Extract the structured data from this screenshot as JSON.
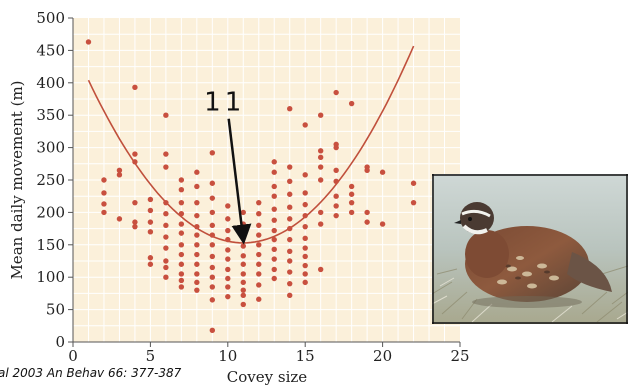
{
  "citation": "al 2003  An Behav 66: 377-387",
  "annotation_label": "11",
  "photo": {
    "subject": "quail-bird-photo"
  },
  "chart_data": {
    "type": "scatter",
    "title": "",
    "xlabel": "Covey size",
    "ylabel": "Mean daily movement (m)",
    "xlim": [
      0,
      25
    ],
    "ylim": [
      0,
      500
    ],
    "xticks": [
      0,
      5,
      10,
      15,
      20,
      25
    ],
    "yticks": [
      0,
      50,
      100,
      150,
      200,
      250,
      300,
      350,
      400,
      450,
      500
    ],
    "grid": true,
    "colors": {
      "points": "#c8503f",
      "curve": "#c0503c",
      "plot_bg": "#fbf0da",
      "grid": "#ffffff"
    },
    "fit_curve": {
      "type": "quadratic",
      "a": 2.51,
      "vertex_x": 11,
      "vertex_y": 153
    },
    "annotation_arrow": {
      "from": [
        9.8,
        360
      ],
      "to": [
        11,
        158
      ]
    },
    "points": [
      [
        1,
        463
      ],
      [
        2,
        250
      ],
      [
        2,
        230
      ],
      [
        2,
        213
      ],
      [
        2,
        200
      ],
      [
        3,
        265
      ],
      [
        3,
        258
      ],
      [
        3,
        190
      ],
      [
        4,
        393
      ],
      [
        4,
        290
      ],
      [
        4,
        278
      ],
      [
        4,
        215
      ],
      [
        4,
        185
      ],
      [
        4,
        178
      ],
      [
        5,
        220
      ],
      [
        5,
        203
      ],
      [
        5,
        185
      ],
      [
        5,
        170
      ],
      [
        5,
        130
      ],
      [
        5,
        120
      ],
      [
        6,
        350
      ],
      [
        6,
        290
      ],
      [
        6,
        270
      ],
      [
        6,
        215
      ],
      [
        6,
        198
      ],
      [
        6,
        180
      ],
      [
        6,
        162
      ],
      [
        6,
        145
      ],
      [
        6,
        125
      ],
      [
        6,
        115
      ],
      [
        6,
        100
      ],
      [
        7,
        250
      ],
      [
        7,
        235
      ],
      [
        7,
        215
      ],
      [
        7,
        198
      ],
      [
        7,
        182
      ],
      [
        7,
        168
      ],
      [
        7,
        150
      ],
      [
        7,
        135
      ],
      [
        7,
        120
      ],
      [
        7,
        105
      ],
      [
        7,
        95
      ],
      [
        7,
        85
      ],
      [
        8,
        262
      ],
      [
        8,
        240
      ],
      [
        8,
        215
      ],
      [
        8,
        195
      ],
      [
        8,
        178
      ],
      [
        8,
        165
      ],
      [
        8,
        150
      ],
      [
        8,
        135
      ],
      [
        8,
        120
      ],
      [
        8,
        105
      ],
      [
        8,
        92
      ],
      [
        8,
        80
      ],
      [
        9,
        292
      ],
      [
        9,
        245
      ],
      [
        9,
        222
      ],
      [
        9,
        200
      ],
      [
        9,
        180
      ],
      [
        9,
        165
      ],
      [
        9,
        150
      ],
      [
        9,
        132
      ],
      [
        9,
        115
      ],
      [
        9,
        100
      ],
      [
        9,
        85
      ],
      [
        9,
        65
      ],
      [
        9,
        18
      ],
      [
        10,
        210
      ],
      [
        10,
        190
      ],
      [
        10,
        172
      ],
      [
        10,
        158
      ],
      [
        10,
        142
      ],
      [
        10,
        128
      ],
      [
        10,
        112
      ],
      [
        10,
        98
      ],
      [
        10,
        85
      ],
      [
        10,
        70
      ],
      [
        11,
        200
      ],
      [
        11,
        182
      ],
      [
        11,
        165
      ],
      [
        11,
        148
      ],
      [
        11,
        133
      ],
      [
        11,
        120
      ],
      [
        11,
        105
      ],
      [
        11,
        92
      ],
      [
        11,
        80
      ],
      [
        11,
        72
      ],
      [
        11,
        58
      ],
      [
        12,
        215
      ],
      [
        12,
        198
      ],
      [
        12,
        180
      ],
      [
        12,
        165
      ],
      [
        12,
        150
      ],
      [
        12,
        135
      ],
      [
        12,
        120
      ],
      [
        12,
        105
      ],
      [
        12,
        88
      ],
      [
        12,
        66
      ],
      [
        13,
        278
      ],
      [
        13,
        262
      ],
      [
        13,
        240
      ],
      [
        13,
        225
      ],
      [
        13,
        205
      ],
      [
        13,
        188
      ],
      [
        13,
        172
      ],
      [
        13,
        158
      ],
      [
        13,
        143
      ],
      [
        13,
        128
      ],
      [
        13,
        112
      ],
      [
        13,
        98
      ],
      [
        14,
        360
      ],
      [
        14,
        270
      ],
      [
        14,
        248
      ],
      [
        14,
        228
      ],
      [
        14,
        208
      ],
      [
        14,
        190
      ],
      [
        14,
        175
      ],
      [
        14,
        158
      ],
      [
        14,
        140
      ],
      [
        14,
        125
      ],
      [
        14,
        108
      ],
      [
        14,
        90
      ],
      [
        14,
        72
      ],
      [
        15,
        335
      ],
      [
        15,
        258
      ],
      [
        15,
        230
      ],
      [
        15,
        212
      ],
      [
        15,
        195
      ],
      [
        15,
        178
      ],
      [
        15,
        160
      ],
      [
        15,
        145
      ],
      [
        15,
        132
      ],
      [
        15,
        118
      ],
      [
        15,
        105
      ],
      [
        15,
        92
      ],
      [
        16,
        350
      ],
      [
        16,
        295
      ],
      [
        16,
        285
      ],
      [
        16,
        270
      ],
      [
        16,
        250
      ],
      [
        16,
        200
      ],
      [
        16,
        182
      ],
      [
        16,
        112
      ],
      [
        17,
        385
      ],
      [
        17,
        305
      ],
      [
        17,
        300
      ],
      [
        17,
        265
      ],
      [
        17,
        248
      ],
      [
        17,
        225
      ],
      [
        17,
        210
      ],
      [
        17,
        195
      ],
      [
        18,
        368
      ],
      [
        18,
        240
      ],
      [
        18,
        228
      ],
      [
        18,
        215
      ],
      [
        18,
        200
      ],
      [
        19,
        270
      ],
      [
        19,
        265
      ],
      [
        19,
        200
      ],
      [
        19,
        185
      ],
      [
        20,
        262
      ],
      [
        20,
        182
      ],
      [
        22,
        245
      ],
      [
        22,
        215
      ]
    ]
  }
}
